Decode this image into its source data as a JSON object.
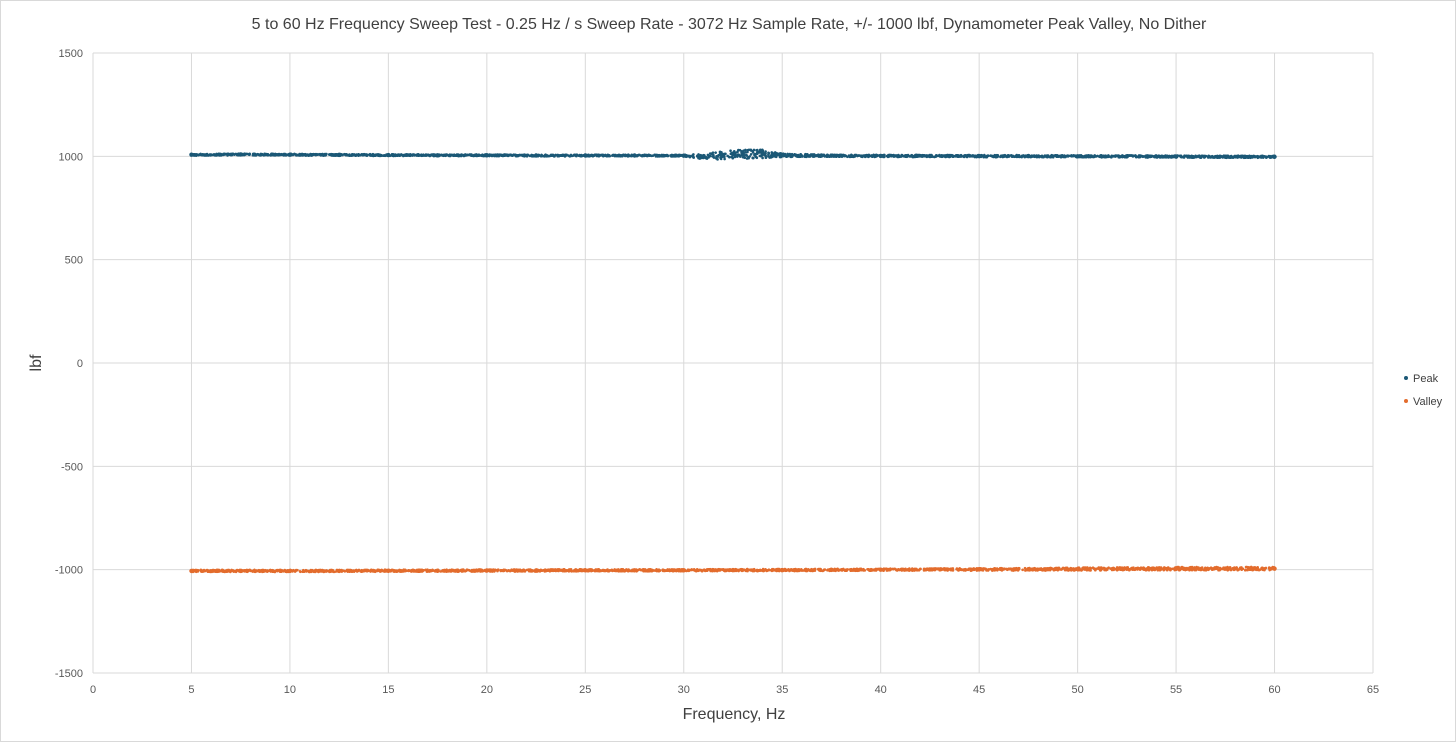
{
  "chart_data": {
    "type": "scatter",
    "title": "5 to 60 Hz Frequency Sweep Test - 0.25 Hz / s Sweep Rate  - 3072 Hz Sample Rate, +/- 1000 lbf, Dynamometer Peak Valley, No Dither",
    "xlabel": "Frequency, Hz",
    "ylabel": "lbf",
    "xlim": [
      0,
      65
    ],
    "ylim": [
      -1500,
      1500
    ],
    "x_ticks": [
      "0",
      "5",
      "10",
      "15",
      "20",
      "25",
      "30",
      "35",
      "40",
      "45",
      "50",
      "55",
      "60",
      "65"
    ],
    "y_ticks": [
      "1500",
      "1000",
      "500",
      "0",
      "-500",
      "-1000",
      "-1500"
    ],
    "grid": true,
    "legend_position": "right",
    "series": [
      {
        "name": "Peak",
        "color": "#1b5876",
        "x": [
          5,
          7.5,
          10,
          12.5,
          15,
          17.5,
          20,
          22.5,
          25,
          27.5,
          30,
          31,
          32,
          33,
          34,
          35,
          37.5,
          40,
          42.5,
          45,
          47.5,
          50,
          52.5,
          55,
          57.5,
          60
        ],
        "y": [
          1008,
          1009,
          1008,
          1007,
          1006,
          1005,
          1005,
          1004,
          1004,
          1004,
          1003,
          1000,
          1005,
          1010,
          1012,
          1005,
          1003,
          1002,
          1002,
          1001,
          1001,
          1000,
          1000,
          999,
          998,
          998
        ],
        "spread": [
          5,
          4,
          4,
          4,
          4,
          4,
          4,
          4,
          4,
          4,
          4,
          14,
          20,
          22,
          20,
          8,
          5,
          5,
          5,
          5,
          5,
          5,
          5,
          5,
          5,
          5
        ]
      },
      {
        "name": "Valley",
        "color": "#e36c2d",
        "x": [
          5,
          7.5,
          10,
          12.5,
          15,
          17.5,
          20,
          22.5,
          25,
          27.5,
          30,
          32.5,
          35,
          37.5,
          40,
          42.5,
          45,
          47.5,
          50,
          52.5,
          55,
          57.5,
          60
        ],
        "y": [
          -1006,
          -1006,
          -1006,
          -1006,
          -1005,
          -1005,
          -1004,
          -1004,
          -1003,
          -1003,
          -1003,
          -1002,
          -1002,
          -1001,
          -1000,
          -999,
          -999,
          -998,
          -997,
          -996,
          -995,
          -995,
          -995
        ],
        "spread": [
          5,
          5,
          5,
          5,
          5,
          5,
          5,
          5,
          5,
          5,
          5,
          5,
          5,
          5,
          5,
          5,
          6,
          6,
          7,
          7,
          8,
          8,
          8
        ]
      }
    ]
  }
}
